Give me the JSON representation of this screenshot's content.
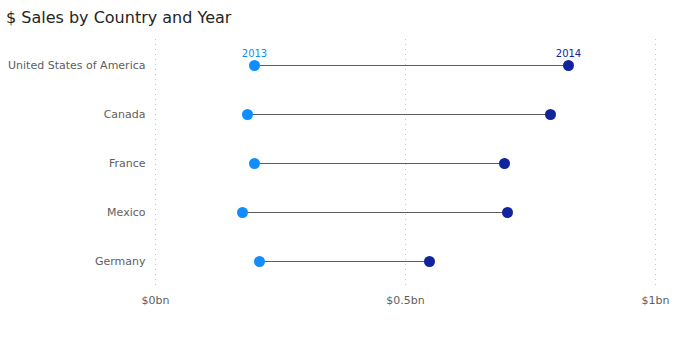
{
  "chart_data": {
    "type": "dumbbell",
    "title": "$ Sales by Country and Year",
    "orientation": "horizontal",
    "categories": [
      "United States of America",
      "Canada",
      "France",
      "Mexico",
      "Germany"
    ],
    "series": [
      {
        "name": "2013",
        "color": "#118DFF",
        "values": [
          0.198,
          0.184,
          0.198,
          0.174,
          0.208
        ]
      },
      {
        "name": "2014",
        "color": "#12239E",
        "values": [
          0.826,
          0.79,
          0.698,
          0.704,
          0.548
        ]
      }
    ],
    "xlim": [
      0,
      1
    ],
    "xticks": [
      {
        "value": 0,
        "label": "$0bn"
      },
      {
        "value": 0.5,
        "label": "$0.5bn"
      },
      {
        "value": 1,
        "label": "$1bn"
      }
    ],
    "grid": true
  }
}
